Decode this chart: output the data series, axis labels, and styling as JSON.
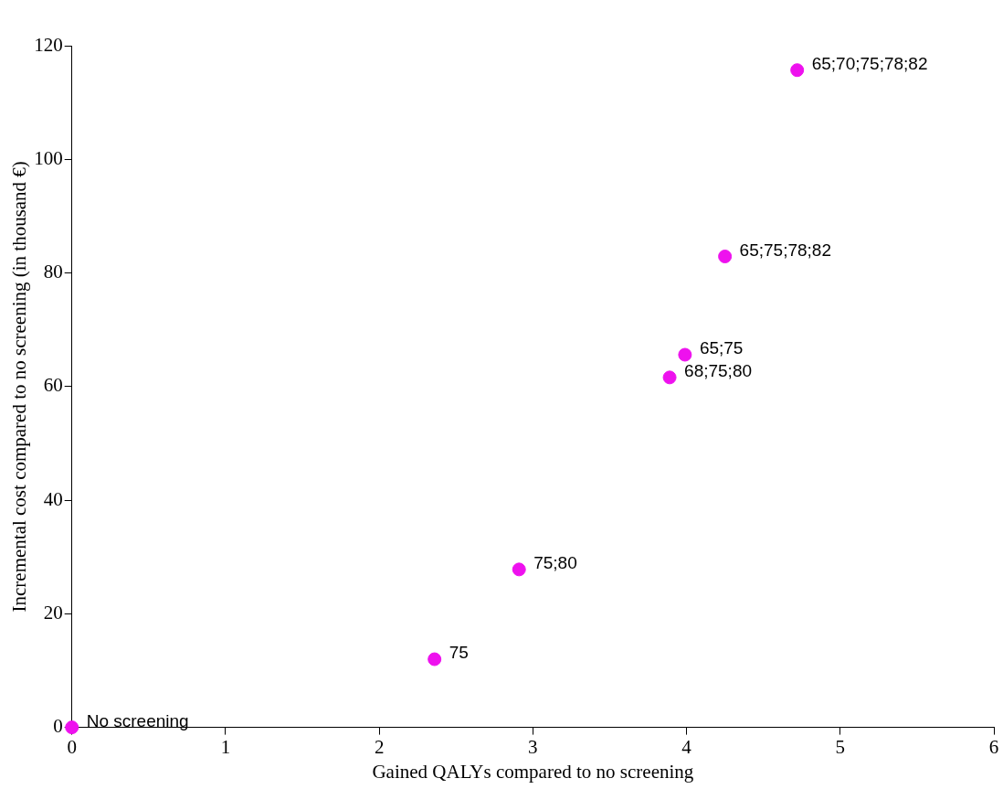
{
  "chart_data": {
    "type": "scatter",
    "xlabel": "Gained QALYs compared to no screening",
    "ylabel": "Incremental cost compared to no screening (in thousand €)",
    "x": [
      0,
      2.36,
      2.91,
      3.89,
      3.99,
      4.25,
      4.72
    ],
    "values": [
      0,
      12,
      27.8,
      61.6,
      65.6,
      82.9,
      115.7
    ],
    "annotations": [
      {
        "text": "No screening",
        "x": 0,
        "y": 0
      },
      {
        "text": "75",
        "x": 2.36,
        "y": 12
      },
      {
        "text": "75;80",
        "x": 2.91,
        "y": 27.8
      },
      {
        "text": "68;75;80",
        "x": 3.89,
        "y": 61.6
      },
      {
        "text": "65;75",
        "x": 3.99,
        "y": 65.6
      },
      {
        "text": "65;75;78;82",
        "x": 4.25,
        "y": 82.9
      },
      {
        "text": "65;70;75;78;82",
        "x": 4.72,
        "y": 115.7
      }
    ],
    "color": "#ee11ee",
    "marker": "circle",
    "grid": false,
    "legend": false,
    "xlim": [
      0,
      6
    ],
    "xticks": [
      0,
      1,
      2,
      3,
      4,
      5,
      6
    ],
    "ylim": [
      0,
      120
    ],
    "yticks": [
      0,
      20,
      40,
      60,
      80,
      100,
      120
    ]
  }
}
